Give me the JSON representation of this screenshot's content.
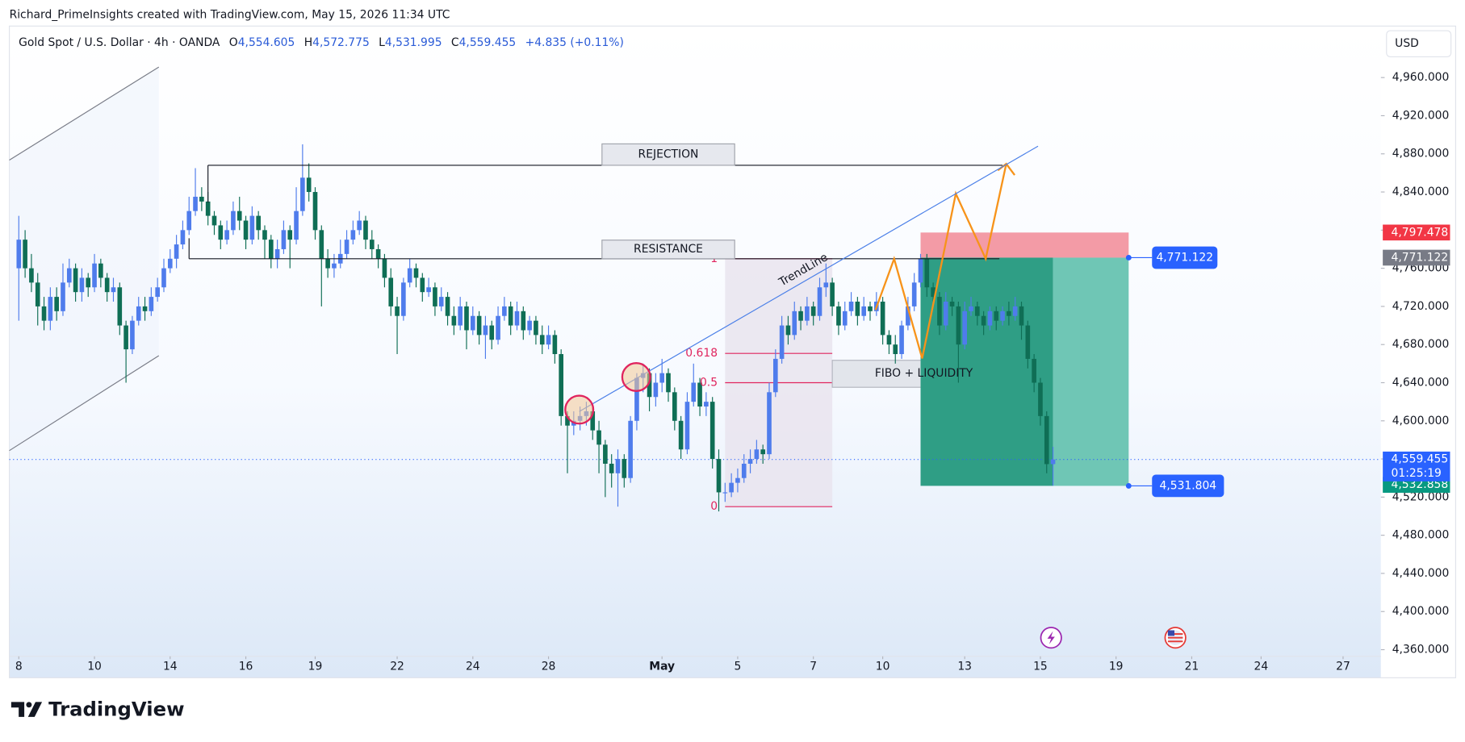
{
  "watermark": "Richard_PrimeInsights created with TradingView.com, May 15, 2026 11:34 UTC",
  "logo": "TradingView",
  "chart_data": {
    "type": "candlestick",
    "symbol": "Gold Spot / U.S. Dollar · 4h · OANDA",
    "ohlc_header": {
      "open_label": "O",
      "open": "4,554.605",
      "high_label": "H",
      "high": "4,572.775",
      "low_label": "L",
      "low": "4,531.995",
      "close_label": "C",
      "close": "4,559.455",
      "change": "+4.835 (+0.11%)"
    },
    "currency": "USD",
    "up_color": "#4f7cec",
    "down_color": "#0f6e55",
    "open": [
      4760,
      4790,
      4760,
      4745,
      4720,
      4705,
      4730,
      4715,
      4745,
      4760,
      4735,
      4750,
      4740,
      4765,
      4750,
      4735,
      4740,
      4700,
      4675,
      4705,
      4720,
      4715,
      4730,
      4740,
      4760,
      4770,
      4785,
      4800,
      4820,
      4835,
      4830,
      4815,
      4805,
      4790,
      4800,
      4820,
      4810,
      4790,
      4815,
      4800,
      4790,
      4770,
      4780,
      4800,
      4790,
      4820,
      4855,
      4840,
      4800,
      4770,
      4760,
      4765,
      4775,
      4790,
      4800,
      4810,
      4790,
      4780,
      4770,
      4750,
      4720,
      4710,
      4745,
      4760,
      4750,
      4735,
      4740,
      4720,
      4730,
      4710,
      4700,
      4720,
      4695,
      4710,
      4690,
      4700,
      4685,
      4710,
      4720,
      4700,
      4715,
      4695,
      4705,
      4690,
      4680,
      4690,
      4670,
      4605,
      4595,
      4600,
      4605,
      4610,
      4590,
      4575,
      4555,
      4545,
      4560,
      4540,
      4600,
      4645,
      4650,
      4625,
      4640,
      4650,
      4630,
      4600,
      4570,
      4620,
      4640,
      4615,
      4620,
      4560,
      4525,
      4525,
      4535,
      4540,
      4555,
      4560,
      4570,
      4565,
      4630,
      4665,
      4700,
      4690,
      4715,
      4705,
      4720,
      4710,
      4740,
      4745,
      4720,
      4700,
      4715,
      4725,
      4710,
      4720,
      4715,
      4725,
      4690,
      4680,
      4670,
      4700,
      4720,
      4745,
      4770,
      4740,
      4730,
      4700,
      4725,
      4720,
      4680,
      4715,
      4720,
      4710,
      4700,
      4715,
      4705,
      4715,
      4710,
      4720,
      4700,
      4665,
      4640,
      4605,
      4554.605
    ],
    "high": [
      4815,
      4800,
      4775,
      4755,
      4730,
      4740,
      4740,
      4765,
      4770,
      4765,
      4760,
      4755,
      4775,
      4770,
      4755,
      4750,
      4745,
      4705,
      4710,
      4730,
      4730,
      4740,
      4750,
      4770,
      4780,
      4795,
      4810,
      4835,
      4865,
      4845,
      4840,
      4820,
      4810,
      4810,
      4830,
      4835,
      4815,
      4825,
      4820,
      4805,
      4795,
      4790,
      4810,
      4805,
      4845,
      4890,
      4870,
      4845,
      4805,
      4780,
      4775,
      4790,
      4800,
      4810,
      4820,
      4815,
      4800,
      4785,
      4775,
      4760,
      4730,
      4750,
      4770,
      4765,
      4755,
      4750,
      4745,
      4740,
      4735,
      4720,
      4730,
      4725,
      4720,
      4715,
      4710,
      4705,
      4720,
      4730,
      4725,
      4725,
      4720,
      4710,
      4710,
      4700,
      4700,
      4695,
      4675,
      4610,
      4610,
      4615,
      4620,
      4615,
      4600,
      4580,
      4565,
      4570,
      4565,
      4605,
      4650,
      4660,
      4655,
      4650,
      4665,
      4655,
      4635,
      4605,
      4630,
      4660,
      4645,
      4630,
      4625,
      4570,
      4535,
      4545,
      4550,
      4565,
      4570,
      4580,
      4575,
      4640,
      4675,
      4710,
      4710,
      4725,
      4720,
      4730,
      4725,
      4750,
      4765,
      4750,
      4725,
      4725,
      4735,
      4730,
      4730,
      4725,
      4735,
      4730,
      4695,
      4690,
      4705,
      4730,
      4755,
      4775,
      4775,
      4745,
      4735,
      4735,
      4730,
      4725,
      4725,
      4730,
      4725,
      4715,
      4720,
      4720,
      4720,
      4725,
      4730,
      4725,
      4705,
      4670,
      4645,
      4610,
      4572.775
    ],
    "low": [
      4705,
      4750,
      4735,
      4700,
      4695,
      4695,
      4705,
      4710,
      4740,
      4725,
      4725,
      4730,
      4735,
      4740,
      4725,
      4725,
      4690,
      4640,
      4670,
      4700,
      4705,
      4710,
      4725,
      4735,
      4755,
      4760,
      4780,
      4795,
      4815,
      4820,
      4805,
      4795,
      4780,
      4785,
      4795,
      4800,
      4780,
      4785,
      4790,
      4770,
      4760,
      4760,
      4775,
      4760,
      4785,
      4815,
      4830,
      4790,
      4720,
      4750,
      4750,
      4760,
      4770,
      4785,
      4795,
      4780,
      4770,
      4760,
      4740,
      4710,
      4670,
      4705,
      4740,
      4740,
      4725,
      4730,
      4710,
      4715,
      4700,
      4690,
      4695,
      4675,
      4690,
      4680,
      4665,
      4675,
      4680,
      4705,
      4690,
      4695,
      4685,
      4690,
      4680,
      4670,
      4675,
      4660,
      4595,
      4545,
      4585,
      4590,
      4595,
      4580,
      4545,
      4520,
      4530,
      4510,
      4530,
      4535,
      4590,
      4630,
      4610,
      4615,
      4630,
      4620,
      4590,
      4560,
      4565,
      4615,
      4605,
      4605,
      4550,
      4505,
      4515,
      4520,
      4525,
      4535,
      4545,
      4555,
      4555,
      4560,
      4625,
      4660,
      4680,
      4685,
      4695,
      4700,
      4700,
      4705,
      4730,
      4710,
      4690,
      4695,
      4710,
      4700,
      4705,
      4705,
      4710,
      4680,
      4670,
      4660,
      4665,
      4695,
      4715,
      4740,
      4730,
      4720,
      4690,
      4695,
      4710,
      4640,
      4675,
      4710,
      4700,
      4690,
      4695,
      4695,
      4700,
      4700,
      4705,
      4685,
      4655,
      4630,
      4595,
      4545,
      4531.995
    ],
    "close": [
      4790,
      4760,
      4745,
      4720,
      4705,
      4730,
      4715,
      4745,
      4760,
      4735,
      4750,
      4740,
      4765,
      4750,
      4735,
      4740,
      4700,
      4675,
      4705,
      4720,
      4715,
      4730,
      4740,
      4760,
      4770,
      4785,
      4800,
      4820,
      4835,
      4830,
      4815,
      4805,
      4790,
      4800,
      4820,
      4810,
      4790,
      4815,
      4800,
      4790,
      4770,
      4780,
      4800,
      4790,
      4820,
      4855,
      4840,
      4800,
      4770,
      4760,
      4765,
      4775,
      4790,
      4800,
      4810,
      4790,
      4780,
      4770,
      4750,
      4720,
      4710,
      4745,
      4760,
      4750,
      4735,
      4740,
      4720,
      4730,
      4710,
      4700,
      4720,
      4695,
      4710,
      4690,
      4700,
      4685,
      4710,
      4720,
      4700,
      4715,
      4695,
      4705,
      4690,
      4680,
      4690,
      4670,
      4605,
      4595,
      4600,
      4605,
      4610,
      4590,
      4575,
      4555,
      4545,
      4560,
      4540,
      4600,
      4645,
      4650,
      4625,
      4640,
      4650,
      4630,
      4600,
      4570,
      4620,
      4640,
      4615,
      4620,
      4560,
      4525,
      4525,
      4535,
      4540,
      4555,
      4560,
      4570,
      4565,
      4630,
      4665,
      4700,
      4690,
      4715,
      4705,
      4720,
      4710,
      4740,
      4745,
      4720,
      4700,
      4715,
      4725,
      4710,
      4720,
      4715,
      4725,
      4690,
      4680,
      4670,
      4700,
      4720,
      4745,
      4770,
      4740,
      4730,
      4700,
      4725,
      4720,
      4680,
      4715,
      4720,
      4710,
      4700,
      4715,
      4705,
      4715,
      4710,
      4720,
      4700,
      4665,
      4640,
      4605,
      4554.62,
      4559.455
    ],
    "xlim": [
      -1.5,
      216
    ],
    "xticks": [
      {
        "value": 0,
        "label": "8"
      },
      {
        "value": 12,
        "label": "10"
      },
      {
        "value": 24,
        "label": "14"
      },
      {
        "value": 36,
        "label": "16"
      },
      {
        "value": 47,
        "label": "19"
      },
      {
        "value": 60,
        "label": "22"
      },
      {
        "value": 72,
        "label": "24"
      },
      {
        "value": 84,
        "label": "28"
      },
      {
        "value": 102,
        "label": "May"
      },
      {
        "value": 114,
        "label": "5"
      },
      {
        "value": 126,
        "label": "7"
      },
      {
        "value": 137,
        "label": "10"
      },
      {
        "value": 150,
        "label": "13"
      },
      {
        "value": 162,
        "label": "15"
      },
      {
        "value": 174,
        "label": "19"
      },
      {
        "value": 186,
        "label": "21"
      },
      {
        "value": 197,
        "label": "24"
      },
      {
        "value": 210,
        "label": "27"
      }
    ],
    "ylim": [
      4353,
      5014
    ],
    "yticks": [
      {
        "value": 4360,
        "label": "4,360.000"
      },
      {
        "value": 4400,
        "label": "4,400.000"
      },
      {
        "value": 4440,
        "label": "4,440.000"
      },
      {
        "value": 4480,
        "label": "4,480.000"
      },
      {
        "value": 4520,
        "label": "4,520.000"
      },
      {
        "value": 4560,
        "label": "4,560.000"
      },
      {
        "value": 4600,
        "label": "4,600.000"
      },
      {
        "value": 4640,
        "label": "4,640.000"
      },
      {
        "value": 4680,
        "label": "4,680.000"
      },
      {
        "value": 4720,
        "label": "4,720.000"
      },
      {
        "value": 4760,
        "label": "4,760.000"
      },
      {
        "value": 4800,
        "label": "4,800.000"
      },
      {
        "value": 4840,
        "label": "4,840.000"
      },
      {
        "value": 4880,
        "label": "4,880.000"
      },
      {
        "value": 4920,
        "label": "4,920.000"
      },
      {
        "value": 4960,
        "label": "4,960.000"
      }
    ],
    "last_price_label": "4,559.455",
    "countdown": "01:25:19",
    "green_axis": {
      "value": 4532.858,
      "label": "4,532.858"
    },
    "annotations": {
      "rejection": {
        "text": "REJECTION",
        "price": 4868,
        "start": 30,
        "end": 156,
        "label_at": 103
      },
      "resistance": {
        "text": "RESISTANCE",
        "price": 4770,
        "start": 27,
        "end": 155.5,
        "label_at": 103
      },
      "trendline": "TrendLine",
      "fibo_liquidity": "FIBO + LIQUIDITY",
      "fib": {
        "start": 112,
        "end": 129,
        "high": 4770,
        "low": 4510,
        "levels": [
          1,
          0.618,
          0.5,
          0
        ]
      },
      "position": {
        "start": 143,
        "end": 176,
        "stop": 4797.478,
        "entry": 4771.122,
        "target": 4531.804,
        "stop_label": "4,797.478",
        "entry_label": "4,771.122",
        "target_label": "4,531.804"
      }
    }
  }
}
